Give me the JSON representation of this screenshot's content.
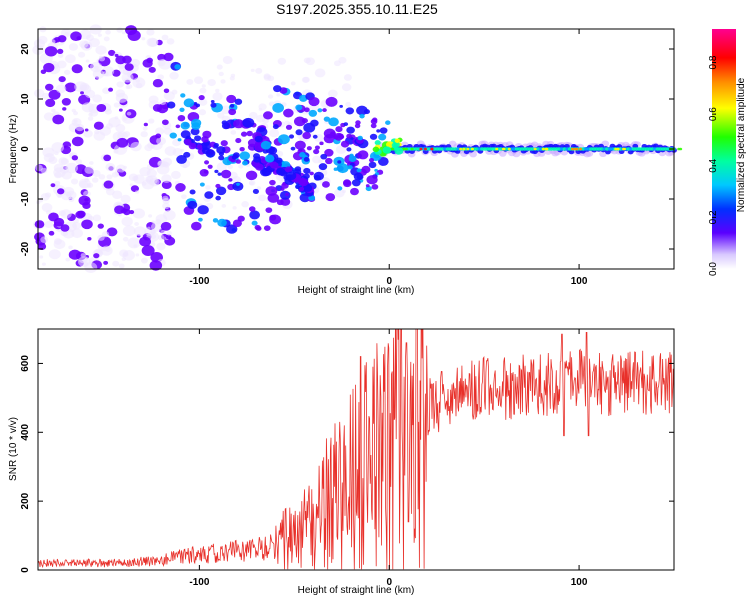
{
  "title": "S197.2025.355.10.11.E25",
  "colors": {
    "line": "#e8302a",
    "axis": "#000000",
    "ridge_low": "#4a00e0",
    "ridge_high": "#ff1a1a"
  },
  "chart_data": [
    {
      "type": "heatmap",
      "title": "S197.2025.355.10.11.E25",
      "xlabel": "Height of straight line (km)",
      "ylabel": "Frequency (Hz)",
      "xlim": [
        -185,
        150
      ],
      "ylim": [
        -24,
        24
      ],
      "x_ticks": [
        -100,
        0,
        100
      ],
      "x_tick_labels": [
        "-100",
        "0",
        "100"
      ],
      "y_ticks": [
        -20,
        -10,
        0,
        10,
        20
      ],
      "y_tick_labels": [
        "-20",
        "-10",
        "0",
        "10",
        "20"
      ],
      "colorbar": {
        "label": "Normalized spectral amplitude",
        "range": [
          0,
          0.93
        ],
        "ticks": [
          0,
          0.2,
          0.4,
          0.6,
          0.8
        ],
        "tick_labels": [
          "0.0",
          "0.2",
          "0.4",
          "0.6",
          "0.8"
        ]
      },
      "ridge": {
        "x": [
          0,
          10,
          20,
          40,
          60,
          80,
          100,
          120,
          150
        ],
        "freq": [
          0,
          0,
          0,
          0,
          0,
          0,
          0,
          0,
          0
        ],
        "amplitude": [
          0.65,
          0.6,
          0.9,
          0.75,
          0.7,
          0.72,
          0.85,
          0.7,
          0.6
        ]
      }
    },
    {
      "type": "line",
      "xlabel": "Height of straight line (km)",
      "ylabel": "SNR (10 * v/v)",
      "xlim": [
        -185,
        150
      ],
      "ylim": [
        0,
        700
      ],
      "x_ticks": [
        -100,
        0,
        100
      ],
      "x_tick_labels": [
        "-100",
        "0",
        "100"
      ],
      "y_ticks": [
        0,
        200,
        400,
        600
      ],
      "y_tick_labels": [
        "0",
        "200",
        "400",
        "600"
      ],
      "envelope": {
        "x": [
          -185,
          -140,
          -120,
          -100,
          -80,
          -60,
          -50,
          -40,
          -30,
          -20,
          -15,
          -10,
          -5,
          0,
          5,
          10,
          15,
          20,
          30,
          40,
          60,
          80,
          90,
          100,
          110,
          130,
          150
        ],
        "y": [
          20,
          20,
          30,
          45,
          55,
          70,
          100,
          150,
          210,
          250,
          300,
          310,
          350,
          360,
          400,
          290,
          440,
          470,
          500,
          520,
          530,
          545,
          540,
          550,
          545,
          540,
          550
        ]
      },
      "spikes": [
        {
          "x": -15,
          "y": 620
        },
        {
          "x": 9,
          "y": 660
        },
        {
          "x": 91,
          "y": 685
        },
        {
          "x": 104,
          "y": 690
        }
      ],
      "dips": [
        {
          "x": 10,
          "y": 140
        },
        {
          "x": 92,
          "y": 390
        },
        {
          "x": 105,
          "y": 390
        }
      ]
    }
  ]
}
